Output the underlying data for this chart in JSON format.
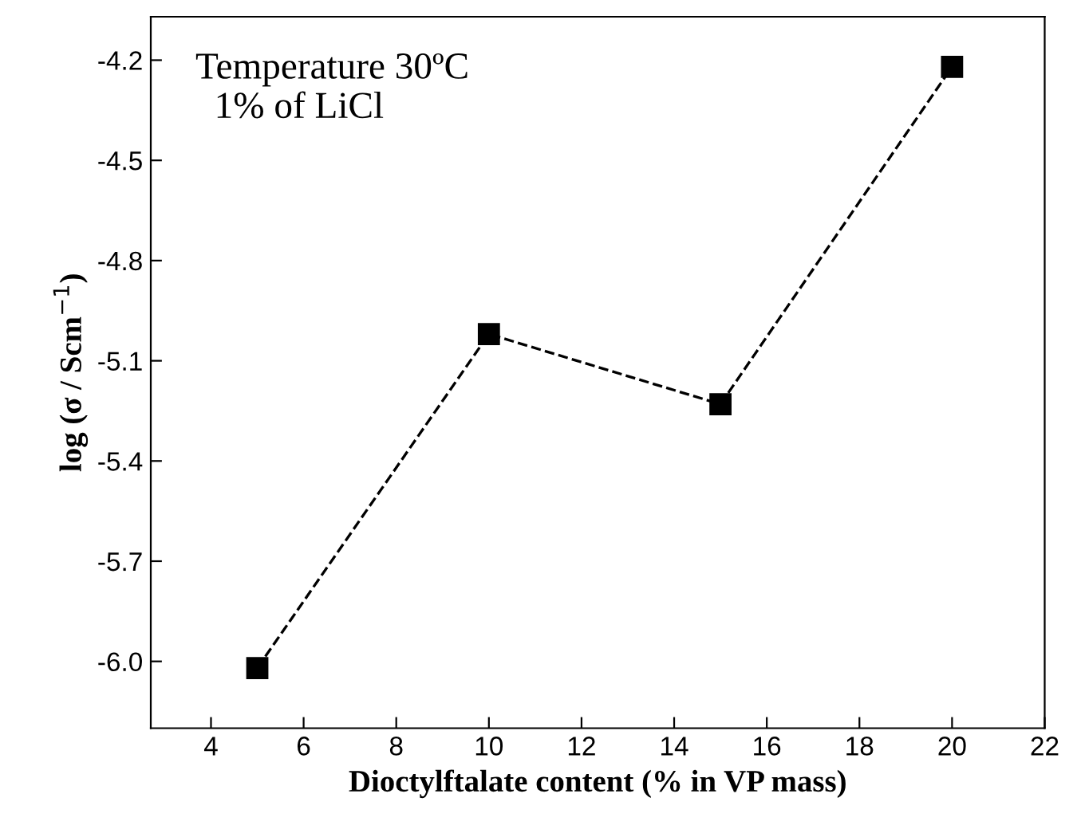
{
  "chart_data": {
    "type": "line",
    "xlabel": "Dioctylftalate content (% in VP mass)",
    "ylabel": "log (σ / Scm$^{−1}$)",
    "annotations": [
      "Temperature 30ºC\n  1% of LiCl"
    ],
    "x": [
      5,
      10,
      15,
      20
    ],
    "series": [
      {
        "color": "#000000",
        "values": [
          -6.02,
          -5.02,
          -5.23,
          -4.22
        ]
      }
    ],
    "marker": "square",
    "line_style": "dashed",
    "grid": false,
    "xlim": [
      2.7,
      22
    ],
    "xticks": [
      4,
      6,
      8,
      10,
      12,
      14,
      16,
      18,
      20,
      22
    ],
    "ylim": [
      -6.2,
      -4.07
    ],
    "yticks": [
      {
        "value": -6.0,
        "label": "-6.0"
      },
      {
        "value": -5.7,
        "label": "-5.7"
      },
      {
        "value": -5.4,
        "label": "-5.4"
      },
      {
        "value": -5.1,
        "label": "-5.1"
      },
      {
        "value": -4.8,
        "label": "-4.8"
      },
      {
        "value": -4.5,
        "label": "-4.5"
      },
      {
        "value": -4.2,
        "label": "-4.2"
      }
    ]
  }
}
